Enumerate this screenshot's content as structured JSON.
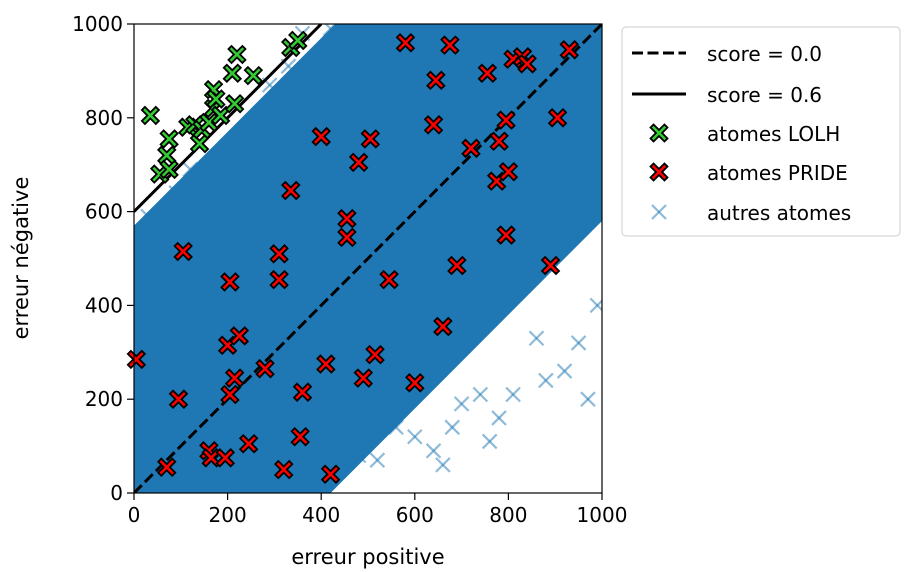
{
  "chart_data": {
    "type": "scatter",
    "xlabel": "erreur positive",
    "ylabel": "erreur négative",
    "xlim": [
      0,
      1000
    ],
    "ylim": [
      0,
      1000
    ],
    "xticks": [
      0,
      200,
      400,
      600,
      800,
      1000
    ],
    "yticks": [
      0,
      200,
      400,
      600,
      800,
      1000
    ],
    "grid": false,
    "legend_position": "outside-upper-right",
    "lines": [
      {
        "name": "score = 0.0",
        "style": "dashed",
        "color": "#000000",
        "points": [
          [
            0,
            0
          ],
          [
            1000,
            1000
          ]
        ]
      },
      {
        "name": "score = 0.6",
        "style": "solid",
        "color": "#000000",
        "points": [
          [
            0,
            600
          ],
          [
            400,
            1000
          ]
        ]
      }
    ],
    "series": [
      {
        "name": "autres atomes",
        "marker": "x",
        "color": "#1f77b4",
        "opacity": 0.5,
        "region": "dense band between the lines y = x - 420 and y = x + 570 (values clipped to 0–1000)",
        "edge_points": [
          [
            950,
            320
          ],
          [
            970,
            200
          ],
          [
            920,
            260
          ],
          [
            880,
            240
          ],
          [
            860,
            330
          ],
          [
            810,
            210
          ],
          [
            780,
            160
          ],
          [
            760,
            110
          ],
          [
            740,
            210
          ],
          [
            700,
            190
          ],
          [
            680,
            140
          ],
          [
            660,
            60
          ],
          [
            640,
            90
          ],
          [
            600,
            120
          ],
          [
            560,
            140
          ],
          [
            520,
            70
          ],
          [
            480,
            80
          ],
          [
            450,
            120
          ],
          [
            400,
            40
          ],
          [
            380,
            60
          ],
          [
            990,
            400
          ],
          [
            980,
            600
          ],
          [
            10,
            520
          ],
          [
            30,
            590
          ],
          [
            60,
            560
          ],
          [
            40,
            480
          ],
          [
            90,
            640
          ],
          [
            120,
            690
          ],
          [
            150,
            660
          ],
          [
            180,
            720
          ],
          [
            230,
            760
          ],
          [
            260,
            800
          ],
          [
            290,
            870
          ],
          [
            330,
            910
          ],
          [
            360,
            980
          ],
          [
            420,
            990
          ],
          [
            470,
            1000
          ]
        ]
      },
      {
        "name": "atomes PRIDE",
        "marker": "X",
        "color": "#ff0000",
        "edgecolor": "#000000",
        "points": [
          [
            5,
            285
          ],
          [
            70,
            55
          ],
          [
            95,
            200
          ],
          [
            105,
            515
          ],
          [
            160,
            90
          ],
          [
            165,
            75
          ],
          [
            195,
            75
          ],
          [
            200,
            315
          ],
          [
            205,
            450
          ],
          [
            205,
            210
          ],
          [
            215,
            245
          ],
          [
            225,
            335
          ],
          [
            245,
            105
          ],
          [
            280,
            265
          ],
          [
            310,
            510
          ],
          [
            310,
            455
          ],
          [
            320,
            50
          ],
          [
            335,
            645
          ],
          [
            355,
            120
          ],
          [
            360,
            215
          ],
          [
            400,
            760
          ],
          [
            410,
            275
          ],
          [
            420,
            40
          ],
          [
            455,
            585
          ],
          [
            455,
            545
          ],
          [
            480,
            705
          ],
          [
            490,
            245
          ],
          [
            505,
            755
          ],
          [
            515,
            295
          ],
          [
            545,
            455
          ],
          [
            580,
            960
          ],
          [
            600,
            235
          ],
          [
            640,
            785
          ],
          [
            645,
            880
          ],
          [
            660,
            355
          ],
          [
            675,
            955
          ],
          [
            690,
            485
          ],
          [
            720,
            735
          ],
          [
            755,
            895
          ],
          [
            775,
            665
          ],
          [
            780,
            750
          ],
          [
            795,
            795
          ],
          [
            795,
            550
          ],
          [
            800,
            685
          ],
          [
            810,
            925
          ],
          [
            830,
            930
          ],
          [
            840,
            915
          ],
          [
            890,
            485
          ],
          [
            905,
            800
          ],
          [
            930,
            945
          ]
        ]
      },
      {
        "name": "atomes LOLH",
        "marker": "X",
        "color": "#33cc33",
        "edgecolor": "#000000",
        "points": [
          [
            35,
            805
          ],
          [
            55,
            680
          ],
          [
            70,
            720
          ],
          [
            75,
            690
          ],
          [
            75,
            755
          ],
          [
            115,
            780
          ],
          [
            130,
            785
          ],
          [
            140,
            745
          ],
          [
            145,
            775
          ],
          [
            160,
            790
          ],
          [
            170,
            860
          ],
          [
            170,
            820
          ],
          [
            175,
            840
          ],
          [
            185,
            805
          ],
          [
            210,
            895
          ],
          [
            215,
            830
          ],
          [
            220,
            935
          ],
          [
            255,
            890
          ],
          [
            335,
            950
          ],
          [
            350,
            965
          ]
        ]
      }
    ]
  }
}
